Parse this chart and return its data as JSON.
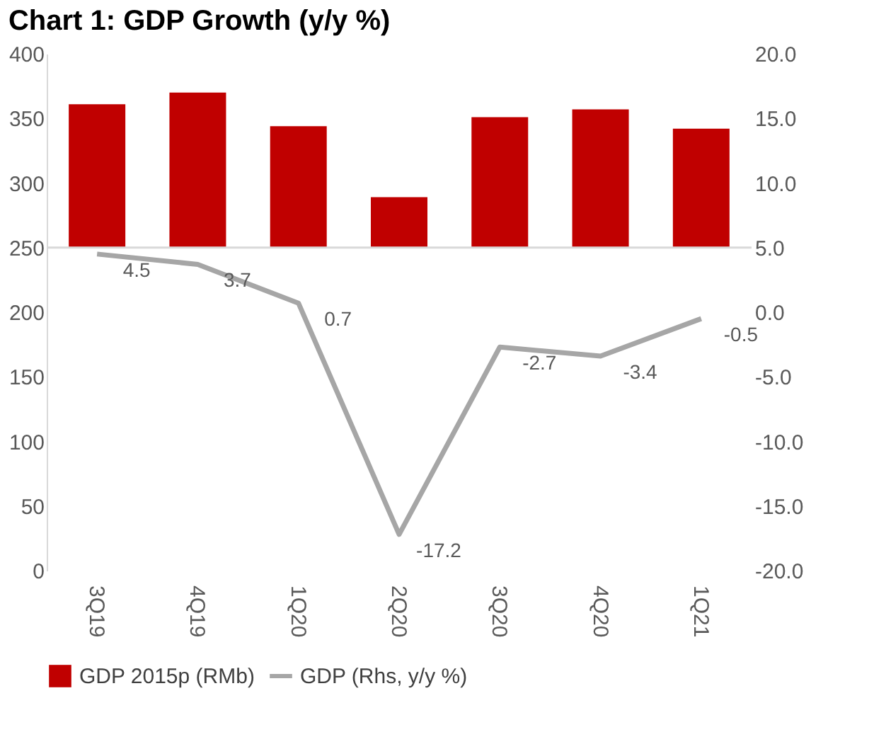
{
  "chart_data": {
    "type": "bar",
    "title": "Chart 1: GDP Growth (y/y %)",
    "categories": [
      "3Q19",
      "4Q19",
      "1Q20",
      "2Q20",
      "3Q20",
      "4Q20",
      "1Q21"
    ],
    "series": [
      {
        "name": "GDP 2015p (RMb)",
        "color": "#c00000",
        "base": [
          250,
          250,
          250,
          250,
          250,
          250,
          250
        ],
        "values": [
          111,
          120,
          94,
          39,
          101,
          107,
          92
        ]
      },
      {
        "name": "GDP (Rhs, y/y %)",
        "type": "line",
        "axis": "y2",
        "color": "#a6a6a6",
        "values": [
          4.5,
          3.7,
          0.7,
          -17.2,
          -2.7,
          -3.4,
          -0.5
        ],
        "data_labels": true
      }
    ],
    "ylim": [
      0,
      400
    ],
    "yticks": [
      0,
      50,
      100,
      150,
      200,
      250,
      300,
      350,
      400
    ],
    "y2lim": [
      -20,
      20
    ],
    "y2ticks": [
      {
        "value": -20,
        "label": "-20.0"
      },
      {
        "value": -15,
        "label": "-15.0"
      },
      {
        "value": -10,
        "label": "-10.0"
      },
      {
        "value": -5,
        "label": "-5.0"
      },
      {
        "value": 0,
        "label": "0.0"
      },
      {
        "value": 5,
        "label": "5.0"
      },
      {
        "value": 10,
        "label": "10.0"
      },
      {
        "value": 15,
        "label": "15.0"
      },
      {
        "value": 20,
        "label": "20.0"
      }
    ],
    "ref_lines": [
      {
        "axis": "y",
        "value": 250,
        "color": "#d9d9d9"
      }
    ],
    "grid": false,
    "legend": "bottom"
  }
}
